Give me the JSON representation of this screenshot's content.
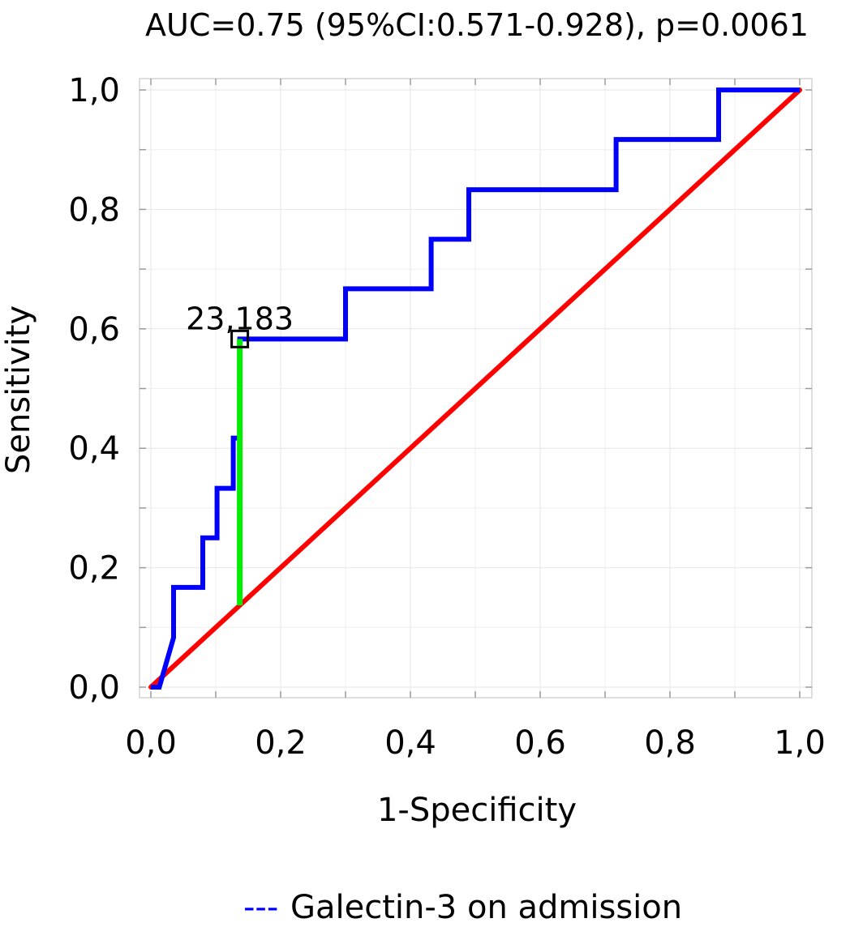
{
  "chart_data": {
    "type": "line",
    "title": "AUC=0.75 (95%CI:0.571-0.928), p=0.0061",
    "xlabel": "1-Specificity",
    "ylabel": "Sensitivity",
    "xlim": [
      0,
      1
    ],
    "ylim": [
      0,
      1
    ],
    "x_ticks": [
      0,
      0.2,
      0.4,
      0.6,
      0.8,
      1.0
    ],
    "y_ticks": [
      0,
      0.2,
      0.4,
      0.6,
      0.8,
      1.0
    ],
    "x_tick_labels": [
      "0,0",
      "0,2",
      "0,4",
      "0,6",
      "0,8",
      "1,0"
    ],
    "y_tick_labels": [
      "0,0",
      "0,2",
      "0,4",
      "0,6",
      "0,8",
      "1,0"
    ],
    "grid": true,
    "legend_position": "bottom-center",
    "series": [
      {
        "name": "Galectin-3 on admission",
        "legend_marker": "---",
        "color": "#0000ff",
        "x": [
          0,
          0.013,
          0.035,
          0.035,
          0.08,
          0.08,
          0.102,
          0.102,
          0.127,
          0.127,
          0.137,
          0.137,
          0.3,
          0.3,
          0.432,
          0.432,
          0.49,
          0.49,
          0.717,
          0.717,
          0.875,
          0.875,
          1.0
        ],
        "y": [
          0,
          0,
          0.083,
          0.167,
          0.167,
          0.25,
          0.25,
          0.333,
          0.333,
          0.417,
          0.417,
          0.583,
          0.583,
          0.667,
          0.667,
          0.75,
          0.75,
          0.833,
          0.833,
          0.917,
          0.917,
          1.0,
          1.0
        ]
      }
    ],
    "reference_line": {
      "x": [
        0,
        1
      ],
      "y": [
        0,
        1
      ],
      "color": "#ff0000"
    },
    "youden_line": {
      "x": 0.137,
      "y_from": 0.137,
      "y_to": 0.583,
      "color": "#00ee00"
    },
    "cutoff_point": {
      "x": 0.137,
      "y": 0.583,
      "label": "23,183",
      "color": "#000000"
    }
  }
}
